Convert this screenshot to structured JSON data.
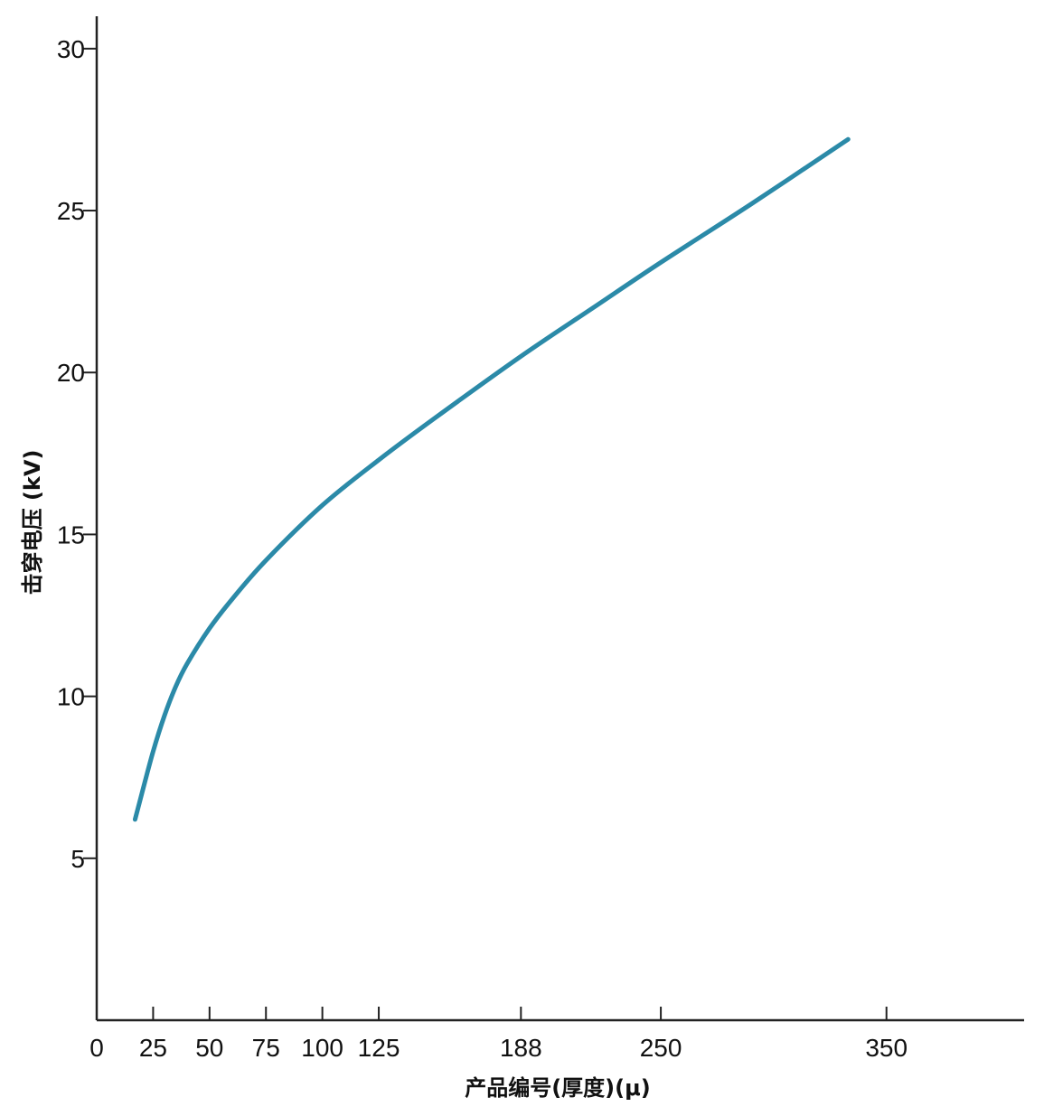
{
  "chart_data": {
    "type": "line",
    "xlabel": "产品编号(厚度)(μ)",
    "ylabel": "击穿电压 (kV)",
    "x_ticks": [
      0,
      25,
      50,
      75,
      100,
      125,
      188,
      250,
      350
    ],
    "y_ticks": [
      5,
      10,
      15,
      20,
      25,
      30
    ],
    "xlim": [
      0,
      411
    ],
    "ylim": [
      0,
      31
    ],
    "grid": false,
    "line_color": "#2b8aa8",
    "series": [
      {
        "x": [
          17,
          20,
          25,
          30,
          35,
          40,
          50,
          60,
          75,
          100,
          125,
          150,
          188,
          220,
          250,
          290,
          333
        ],
        "values": [
          6.2,
          7.0,
          8.3,
          9.4,
          10.3,
          11.0,
          12.1,
          13.0,
          14.2,
          15.9,
          17.3,
          18.6,
          20.5,
          22.0,
          23.4,
          25.2,
          27.2
        ]
      }
    ]
  }
}
